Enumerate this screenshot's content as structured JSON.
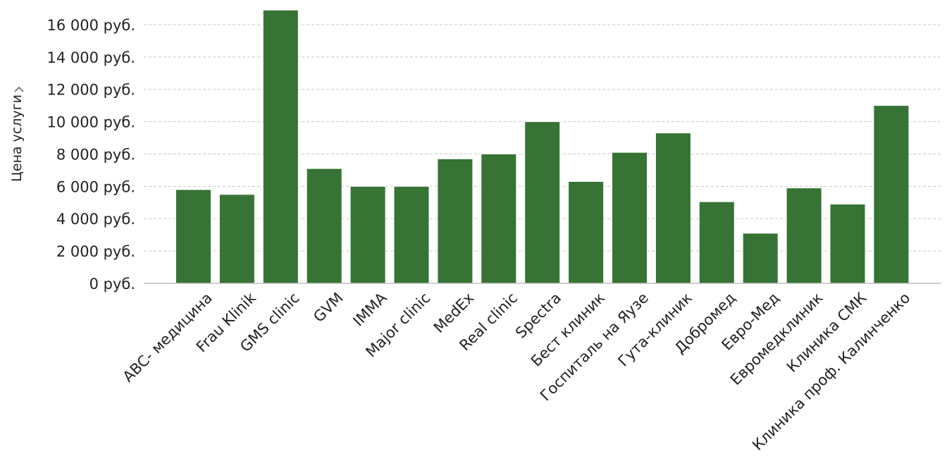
{
  "chart_data": {
    "type": "bar",
    "title": "",
    "xlabel": "",
    "ylabel": "Цена услуги",
    "ylabel_icon": "chevron-right-icon",
    "currency_suffix": "руб.",
    "ylim": [
      0,
      17000
    ],
    "yticks": [
      0,
      2000,
      4000,
      6000,
      8000,
      10000,
      12000,
      14000,
      16000
    ],
    "ytick_labels": [
      "0 руб.",
      "2 000 руб.",
      "4 000 руб.",
      "6 000 руб.",
      "8 000 руб.",
      "10 000 руб.",
      "12 000 руб.",
      "14 000 руб.",
      "16 000 руб."
    ],
    "grid": true,
    "legend": "none",
    "bar_color": "#367334",
    "categories": [
      "ABC- медицина",
      "Frau Klinik",
      "GMS clinic",
      "GVM",
      "IMMA",
      "Major clinic",
      "MedEx",
      "Real clinic",
      "Spectra",
      "Бест клиник",
      "Госпиталь на Яузе",
      "Гута-клиник",
      "Добромед",
      "Евро-Мед",
      "Евромедклиник",
      "Клиника СМК",
      "Клиника проф. Калинченко"
    ],
    "values": [
      5800,
      5500,
      16900,
      7100,
      6000,
      6000,
      7700,
      8000,
      10000,
      6300,
      8100,
      9300,
      5050,
      3100,
      5900,
      4900,
      11000
    ]
  }
}
